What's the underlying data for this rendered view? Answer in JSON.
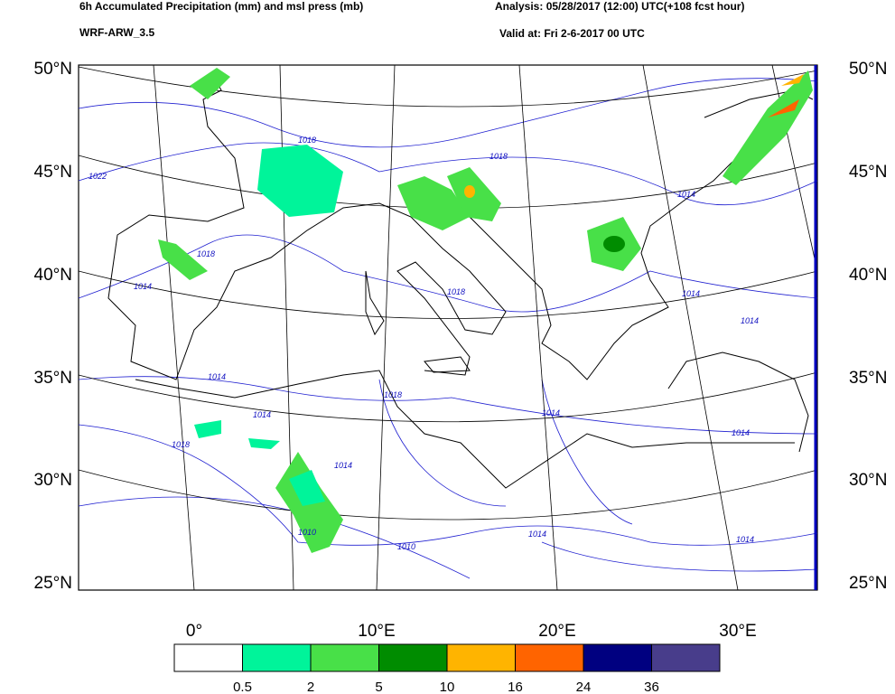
{
  "header": {
    "title": "6h Accumulated Precipitation (mm) and msl press (mb)",
    "model": "WRF-ARW_3.5",
    "analysis": "Analysis: 05/28/2017 (12:00) UTC(+108 fcst hour)",
    "valid": "Valid at: Fri 2-6-2017 00 UTC"
  },
  "map": {
    "lat_labels": [
      "50°N",
      "45°N",
      "40°N",
      "35°N",
      "30°N",
      "25°N"
    ],
    "lon_labels": [
      "0°",
      "10°E",
      "20°E",
      "30°E"
    ],
    "isobar_labels": [
      "1018",
      "1022",
      "1018",
      "1018",
      "1014",
      "1014",
      "1018",
      "1014",
      "1014",
      "1014",
      "1018",
      "1014",
      "1018",
      "1010",
      "1014",
      "1014",
      "1010",
      "1014",
      "1014",
      "1014"
    ]
  },
  "colorbar": {
    "colors": [
      "#ffffff",
      "#00f49a",
      "#48e048",
      "#008c00",
      "#ffb400",
      "#ff6400",
      "#000080",
      "#483d8b"
    ],
    "levels": [
      0.5,
      2,
      5,
      10,
      16,
      24,
      36
    ]
  }
}
